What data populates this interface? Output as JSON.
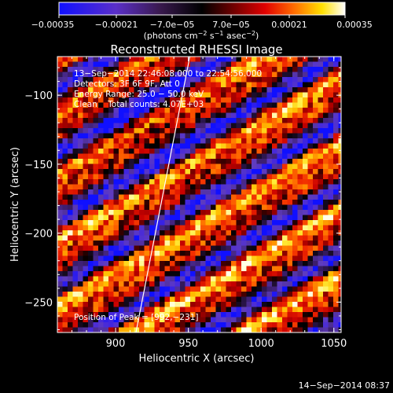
{
  "colorbar": {
    "tick_labels": [
      "−0.00035",
      "−0.00021",
      "−7.0e−05",
      "7.0e−05",
      "0.00021",
      "0.00035"
    ],
    "units_main": "(photons cm",
    "units_sup1": "−2",
    "units_mid": " s",
    "units_sup2": "−1",
    "units_end": " asec",
    "units_sup3": "−2",
    "units_close": ")"
  },
  "header": {
    "title": "Reconstructed RHESSI Image"
  },
  "annotations": {
    "line1": "13−Sep−2014 22:46:08.000 to 22:54:56.000",
    "line2": "Detectors: 3F 6F 9F, Att 0",
    "line3": "Energy Range: 25.0 − 50.0 keV",
    "line4": "Clean    Total counts: 4.07E+03",
    "peak": "Position of Peak = [992,−231]"
  },
  "footer": {
    "timestamp": "14−Sep−2014 08:37"
  },
  "chart_data": {
    "type": "heatmap",
    "title": "Reconstructed RHESSI Image",
    "xlabel": "Heliocentric X (arcsec)",
    "ylabel": "Heliocentric Y (arcsec)",
    "xlim": [
      860,
      1055
    ],
    "ylim": [
      -272,
      -72
    ],
    "x_ticks": [
      900,
      950,
      1000,
      1050
    ],
    "y_ticks": [
      -100,
      -150,
      -200,
      -250
    ],
    "x_tick_labels": [
      "900",
      "950",
      "1000",
      "1050"
    ],
    "y_tick_labels": [
      "−100",
      "−150",
      "−200",
      "−250"
    ],
    "colorbar_range": [
      -0.00035,
      0.00035
    ],
    "colormap": "blue-purple-black-red-orange-yellow-white",
    "peak_position": [
      992,
      -231
    ],
    "limb_line_x": [
      951,
      914
    ],
    "limb_line_y": [
      -72,
      -272
    ],
    "stripe_angle_deg": 60
  }
}
